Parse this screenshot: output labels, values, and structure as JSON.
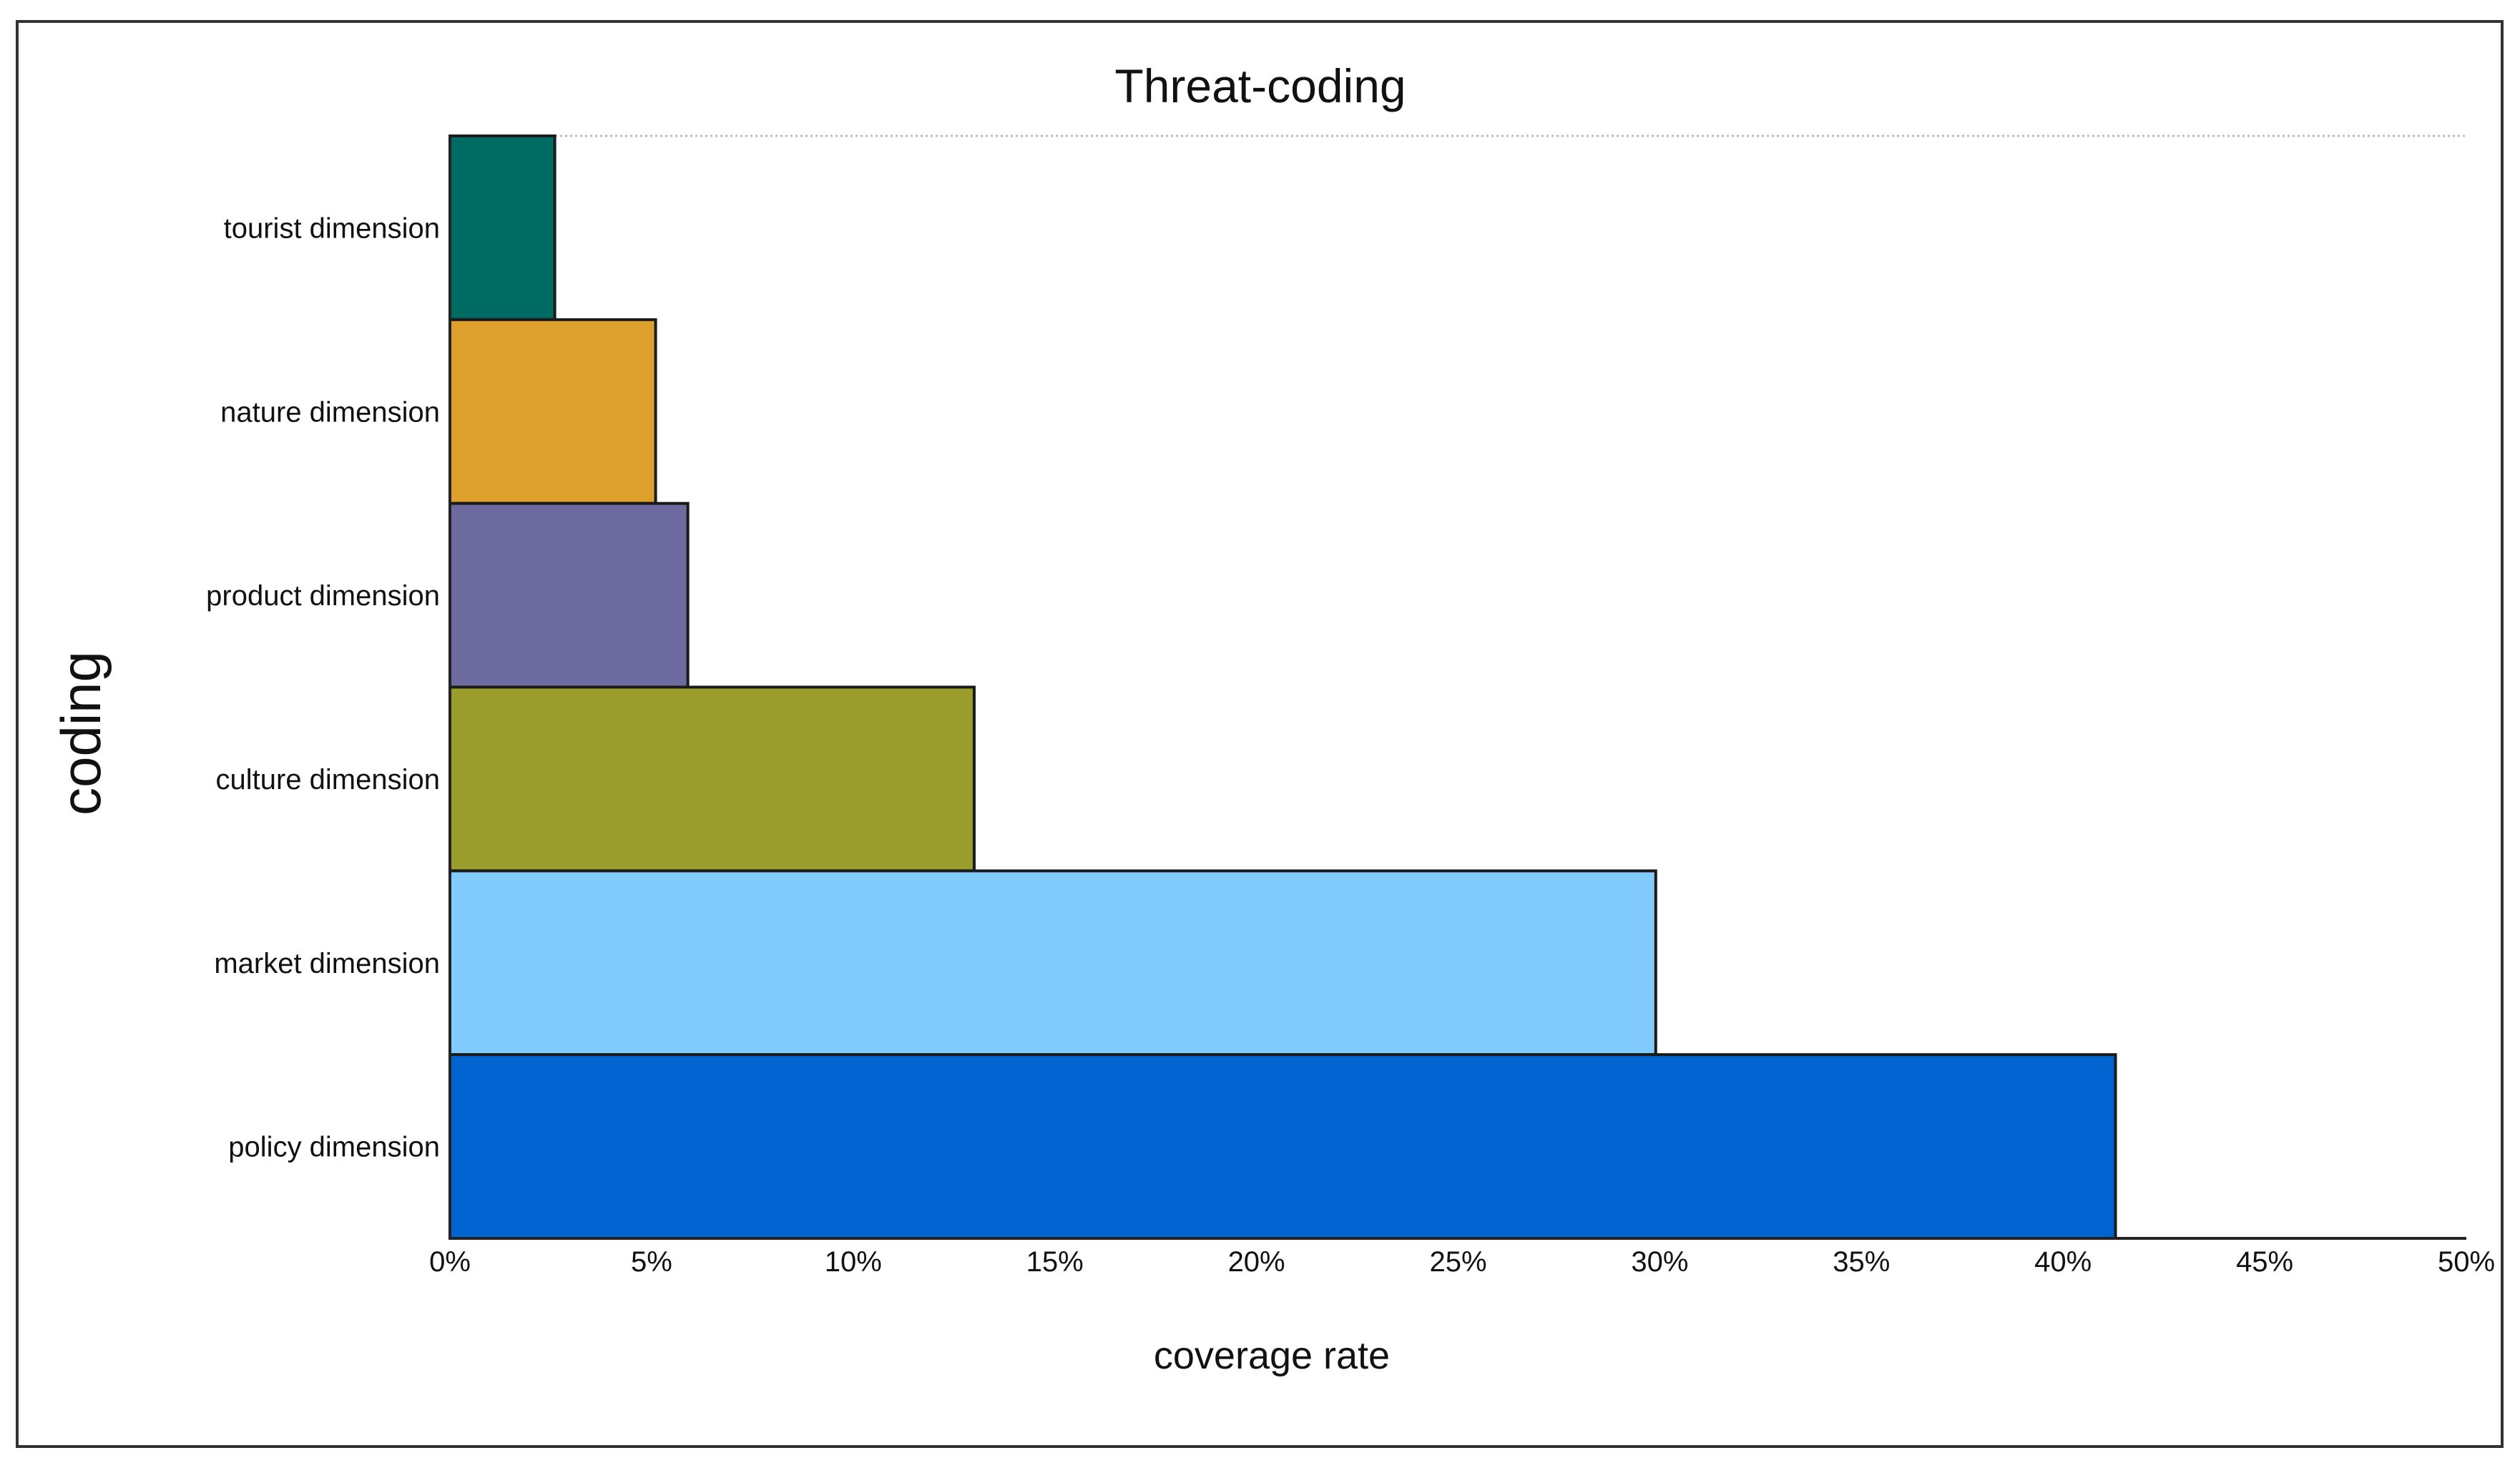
{
  "chart_data": {
    "type": "bar",
    "orientation": "horizontal",
    "title": "Threat-coding",
    "xlabel": "coverage rate",
    "ylabel": "coding",
    "xlim": [
      0,
      50
    ],
    "x_ticks": [
      0,
      5,
      10,
      15,
      20,
      25,
      30,
      35,
      40,
      45,
      50
    ],
    "x_tick_labels": [
      "0%",
      "5%",
      "10%",
      "15%",
      "20%",
      "25%",
      "30%",
      "35%",
      "40%",
      "45%",
      "50%"
    ],
    "value_unit": "%",
    "grid": false,
    "legend": "none",
    "categories": [
      "tourist dimension",
      "nature dimension",
      "product dimension",
      "culture dimension",
      "market dimension",
      "policy dimension"
    ],
    "values": [
      2.6,
      5.1,
      5.9,
      13.0,
      29.9,
      41.3
    ],
    "colors": [
      "#006b62",
      "#dea02c",
      "#6c6a9e",
      "#9a9c2c",
      "#82cbfd",
      "#0264d1"
    ]
  },
  "colors": {
    "frame": "#333333",
    "axis": "#222222",
    "bar_outline": "#1a1a1a",
    "top_rule": "#bbbbbb"
  }
}
